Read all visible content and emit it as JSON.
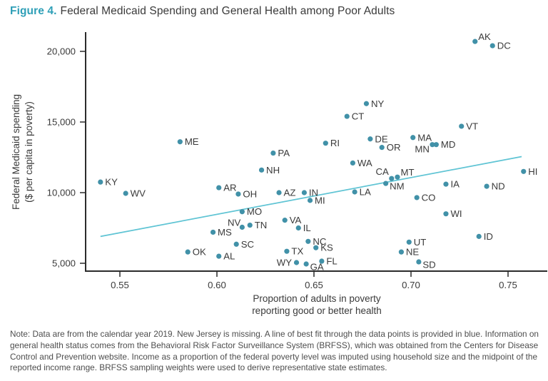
{
  "title": {
    "prefix": "Figure 4.",
    "text": "Federal Medicaid Spending and General Health among Poor Adults"
  },
  "colors": {
    "accent": "#2e9fb7",
    "dot": "#4191a8",
    "trend": "#5fc4d4",
    "axis": "#2b2b2b",
    "text": "#3a3a3a",
    "note_text": "#4d4d4d"
  },
  "chart_data": {
    "type": "scatter",
    "xlabel": "Proportion of adults in poverty\nreporting good or better health",
    "ylabel": "Federal Medicaid spending\n($ per capita in poverty)",
    "x_ticks": [
      0.55,
      0.6,
      0.65,
      0.7,
      0.75
    ],
    "y_ticks": [
      5000,
      10000,
      15000,
      20000
    ],
    "xlim": [
      0.535,
      0.77
    ],
    "ylim": [
      4400,
      21500
    ],
    "grid": false,
    "trend_line": {
      "x1": 0.54,
      "y1": 6900,
      "x2": 0.757,
      "y2": 12550,
      "description": "line of best fit (blue)"
    },
    "points": [
      {
        "label": "AK",
        "x": 0.733,
        "y": 20700,
        "label_pos": "above-right"
      },
      {
        "label": "DC",
        "x": 0.742,
        "y": 20400,
        "label_pos": "right"
      },
      {
        "label": "NY",
        "x": 0.677,
        "y": 16300,
        "label_pos": "right"
      },
      {
        "label": "CT",
        "x": 0.667,
        "y": 15400,
        "label_pos": "right"
      },
      {
        "label": "VT",
        "x": 0.726,
        "y": 14700,
        "label_pos": "right"
      },
      {
        "label": "MA",
        "x": 0.701,
        "y": 13900,
        "label_pos": "right"
      },
      {
        "label": "DE",
        "x": 0.679,
        "y": 13800,
        "label_pos": "right"
      },
      {
        "label": "ME",
        "x": 0.581,
        "y": 13600,
        "label_pos": "right"
      },
      {
        "label": "RI",
        "x": 0.656,
        "y": 13500,
        "label_pos": "right"
      },
      {
        "label": "MN",
        "x": 0.711,
        "y": 13400,
        "label_pos": "left-below"
      },
      {
        "label": "MD",
        "x": 0.713,
        "y": 13400,
        "label_pos": "right"
      },
      {
        "label": "OR",
        "x": 0.685,
        "y": 13200,
        "label_pos": "right"
      },
      {
        "label": "PA",
        "x": 0.629,
        "y": 12800,
        "label_pos": "right"
      },
      {
        "label": "WA",
        "x": 0.67,
        "y": 12100,
        "label_pos": "right"
      },
      {
        "label": "NH",
        "x": 0.623,
        "y": 11600,
        "label_pos": "right"
      },
      {
        "label": "HI",
        "x": 0.758,
        "y": 11500,
        "label_pos": "right"
      },
      {
        "label": "MT",
        "x": 0.693,
        "y": 11100,
        "label_pos": "above-right"
      },
      {
        "label": "CA",
        "x": 0.69,
        "y": 11000,
        "label_pos": "above-left"
      },
      {
        "label": "KY",
        "x": 0.54,
        "y": 10750,
        "label_pos": "right"
      },
      {
        "label": "NM",
        "x": 0.687,
        "y": 10650,
        "label_pos": "right-below"
      },
      {
        "label": "IA",
        "x": 0.718,
        "y": 10600,
        "label_pos": "right"
      },
      {
        "label": "ND",
        "x": 0.739,
        "y": 10450,
        "label_pos": "right"
      },
      {
        "label": "AR",
        "x": 0.601,
        "y": 10350,
        "label_pos": "right"
      },
      {
        "label": "LA",
        "x": 0.671,
        "y": 10050,
        "label_pos": "right"
      },
      {
        "label": "AZ",
        "x": 0.632,
        "y": 10000,
        "label_pos": "right"
      },
      {
        "label": "IN",
        "x": 0.645,
        "y": 10000,
        "label_pos": "right"
      },
      {
        "label": "WV",
        "x": 0.553,
        "y": 9950,
        "label_pos": "right"
      },
      {
        "label": "OH",
        "x": 0.611,
        "y": 9900,
        "label_pos": "right"
      },
      {
        "label": "CO",
        "x": 0.703,
        "y": 9650,
        "label_pos": "right"
      },
      {
        "label": "MI",
        "x": 0.648,
        "y": 9450,
        "label_pos": "right"
      },
      {
        "label": "MO",
        "x": 0.613,
        "y": 8650,
        "label_pos": "right"
      },
      {
        "label": "WI",
        "x": 0.718,
        "y": 8500,
        "label_pos": "right"
      },
      {
        "label": "VA",
        "x": 0.635,
        "y": 8050,
        "label_pos": "right"
      },
      {
        "label": "TN",
        "x": 0.617,
        "y": 7700,
        "label_pos": "right"
      },
      {
        "label": "NV",
        "x": 0.613,
        "y": 7550,
        "label_pos": "left-above"
      },
      {
        "label": "IL",
        "x": 0.642,
        "y": 7500,
        "label_pos": "right"
      },
      {
        "label": "MS",
        "x": 0.598,
        "y": 7200,
        "label_pos": "right"
      },
      {
        "label": "ID",
        "x": 0.735,
        "y": 6900,
        "label_pos": "right"
      },
      {
        "label": "NC",
        "x": 0.647,
        "y": 6550,
        "label_pos": "right"
      },
      {
        "label": "UT",
        "x": 0.699,
        "y": 6500,
        "label_pos": "right"
      },
      {
        "label": "SC",
        "x": 0.61,
        "y": 6350,
        "label_pos": "right"
      },
      {
        "label": "KS",
        "x": 0.651,
        "y": 6100,
        "label_pos": "right"
      },
      {
        "label": "TX",
        "x": 0.636,
        "y": 5850,
        "label_pos": "right"
      },
      {
        "label": "OK",
        "x": 0.585,
        "y": 5800,
        "label_pos": "right"
      },
      {
        "label": "NE",
        "x": 0.695,
        "y": 5800,
        "label_pos": "right"
      },
      {
        "label": "AL",
        "x": 0.601,
        "y": 5500,
        "label_pos": "right"
      },
      {
        "label": "FL",
        "x": 0.654,
        "y": 5150,
        "label_pos": "right"
      },
      {
        "label": "SD",
        "x": 0.704,
        "y": 5100,
        "label_pos": "right-below"
      },
      {
        "label": "WY",
        "x": 0.641,
        "y": 5050,
        "label_pos": "left"
      },
      {
        "label": "GA",
        "x": 0.646,
        "y": 4950,
        "label_pos": "right-below"
      }
    ]
  },
  "note": {
    "lines": [
      "Note: Data are from the calendar year 2019. New Jersey is missing. A line of best fit through the data points is provided in blue. Information on",
      "general health status comes from the Behavioral Risk Factor Surveillance System (BRFSS), which was obtained from the Centers for Disease",
      "Control and Prevention website. Income as a proportion of the federal poverty level was imputed using household size and the midpoint of the",
      "reported income range. BRFSS sampling weights were used to derive representative state estimates."
    ]
  }
}
